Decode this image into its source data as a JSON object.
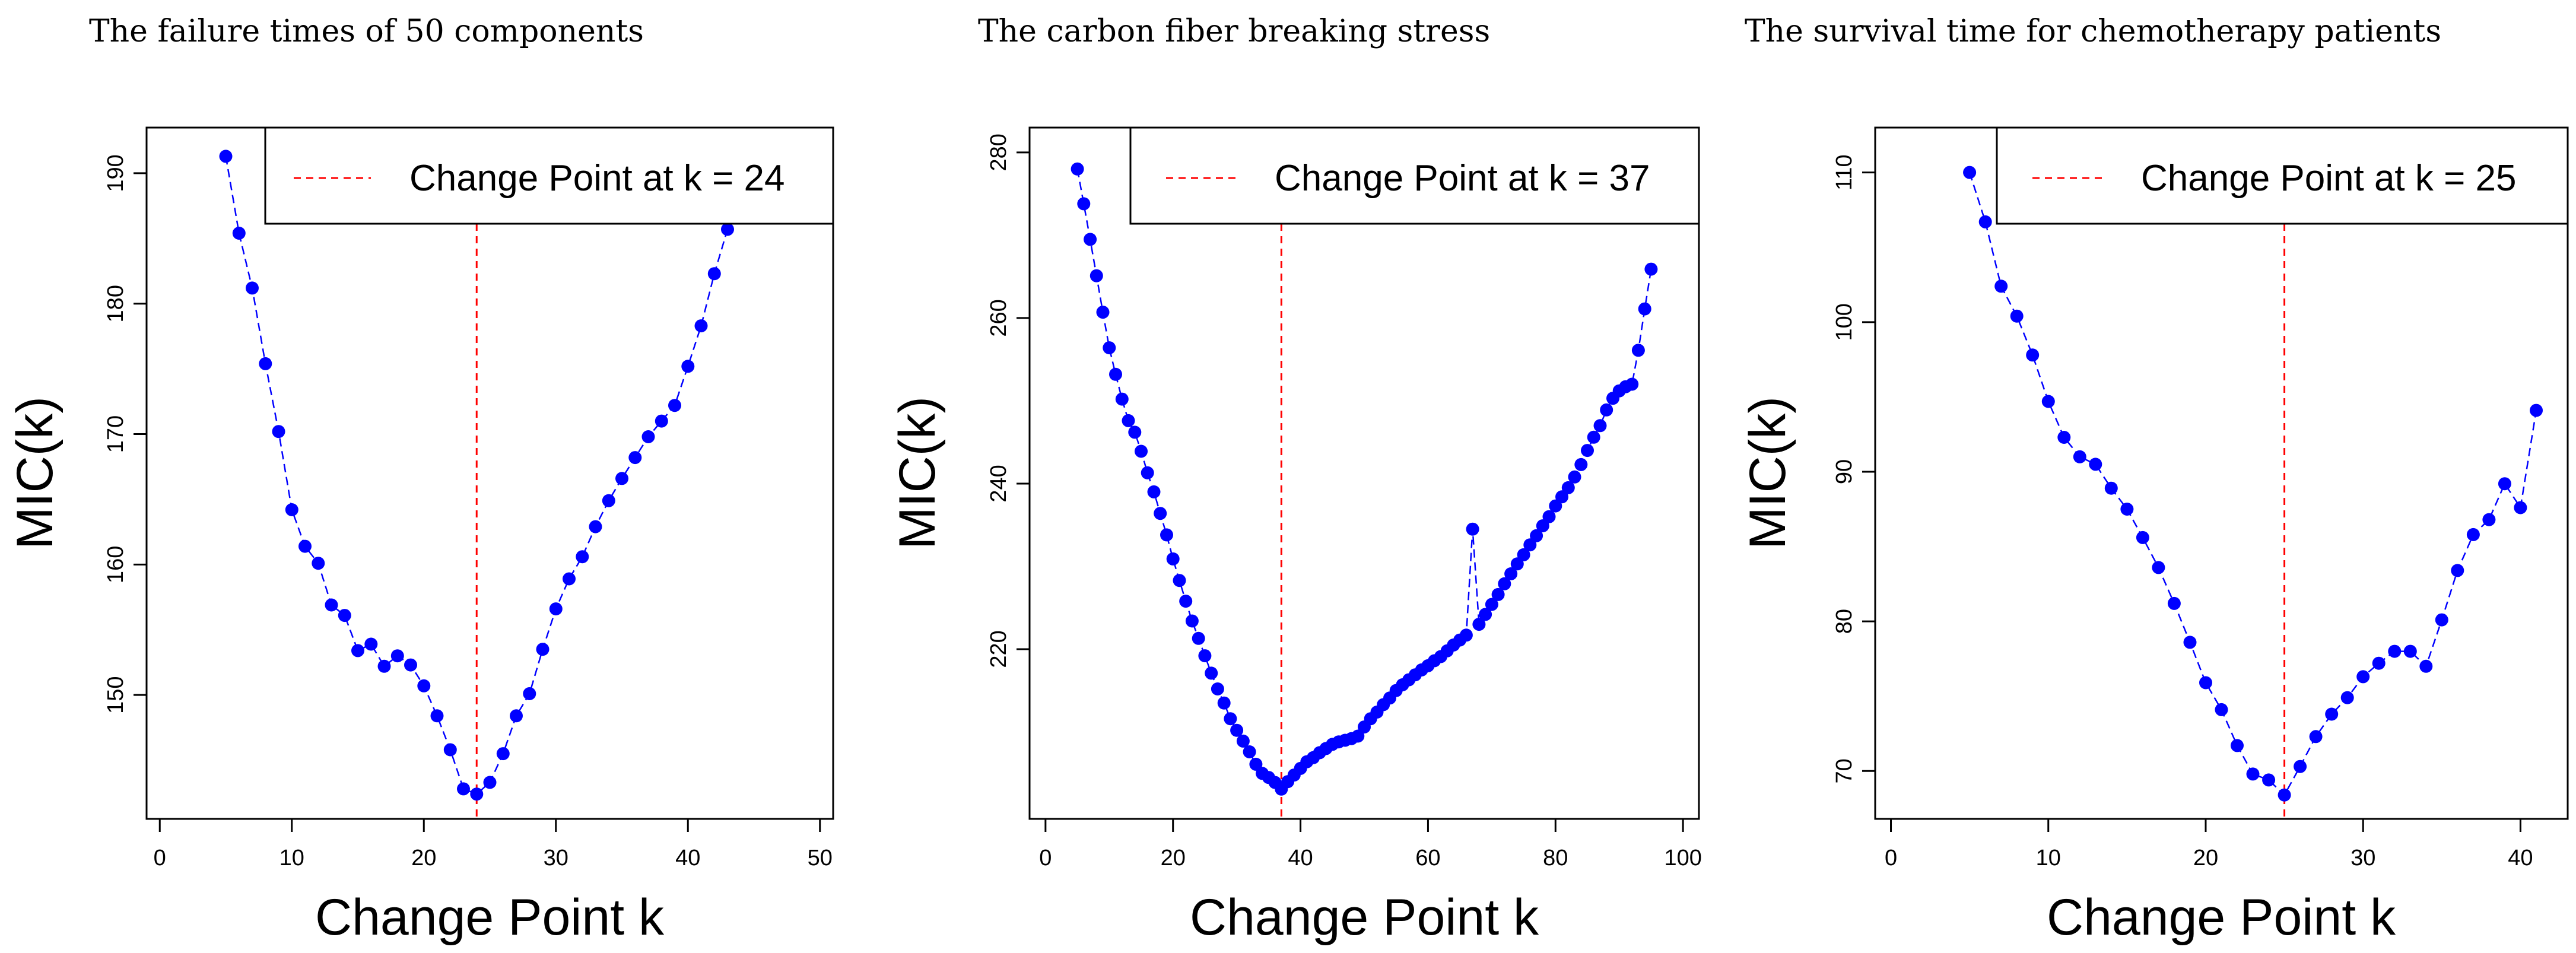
{
  "chart_data": [
    {
      "type": "line",
      "title": "The failure times of 50 components",
      "xlabel": "Change Point k",
      "ylabel": "MIC(k)",
      "xlim": [
        -1,
        51
      ],
      "ylim": [
        140.5,
        193.5
      ],
      "xticks": [
        0,
        10,
        20,
        30,
        40,
        50
      ],
      "yticks": [
        150,
        160,
        170,
        180,
        190
      ],
      "legend": "Change Point at k = 24",
      "legend_position": "top-right",
      "change_point": 24,
      "line_color": "#0000ff",
      "change_point_color": "#ff0000",
      "x": [
        5,
        6,
        7,
        8,
        9,
        10,
        11,
        12,
        13,
        14,
        15,
        16,
        17,
        18,
        19,
        20,
        21,
        22,
        23,
        24,
        25,
        26,
        27,
        28,
        29,
        30,
        31,
        32,
        33,
        34,
        35,
        36,
        37,
        38,
        39,
        40,
        41,
        42,
        43
      ],
      "values": [
        191.3,
        185.4,
        181.2,
        175.4,
        170.2,
        164.2,
        161.4,
        160.1,
        156.9,
        156.1,
        153.4,
        153.9,
        152.2,
        153.0,
        152.3,
        150.7,
        148.4,
        145.8,
        142.8,
        142.4,
        143.3,
        145.5,
        148.4,
        150.1,
        153.5,
        156.6,
        158.9,
        160.6,
        162.9,
        164.9,
        166.6,
        168.2,
        169.8,
        171.0,
        172.2,
        175.2,
        178.3,
        182.3,
        185.7
      ]
    },
    {
      "type": "line",
      "title": "The carbon fiber breaking stress",
      "xlabel": "Change Point k",
      "ylabel": "MIC(k)",
      "xlim": [
        -2.5,
        102.5
      ],
      "ylim": [
        199.5,
        283
      ],
      "xticks": [
        0,
        20,
        40,
        60,
        80,
        100
      ],
      "yticks": [
        220,
        240,
        260,
        280
      ],
      "legend": "Change Point at k = 37",
      "legend_position": "top-right",
      "change_point": 37,
      "line_color": "#0000ff",
      "change_point_color": "#ff0000",
      "x": [
        5,
        6,
        7,
        8,
        9,
        10,
        11,
        12,
        13,
        14,
        15,
        16,
        17,
        18,
        19,
        20,
        21,
        22,
        23,
        24,
        25,
        26,
        27,
        28,
        29,
        30,
        31,
        32,
        33,
        34,
        35,
        36,
        37,
        38,
        39,
        40,
        41,
        42,
        43,
        44,
        45,
        46,
        47,
        48,
        49,
        50,
        51,
        52,
        53,
        54,
        55,
        56,
        57,
        58,
        59,
        60,
        61,
        62,
        63,
        64,
        65,
        66,
        67,
        68,
        69,
        70,
        71,
        72,
        73,
        74,
        75,
        76,
        77,
        78,
        79,
        80,
        81,
        82,
        83,
        84,
        85,
        86,
        87,
        88,
        89,
        90,
        91,
        92,
        93,
        94,
        95
      ],
      "values": [
        278.0,
        273.8,
        269.5,
        265.1,
        260.7,
        256.4,
        253.2,
        250.2,
        247.6,
        246.2,
        243.9,
        241.3,
        239.0,
        236.4,
        233.8,
        230.9,
        228.3,
        225.8,
        223.4,
        221.3,
        219.2,
        217.1,
        215.2,
        213.5,
        211.6,
        210.2,
        208.9,
        207.6,
        206.1,
        205.0,
        204.5,
        203.9,
        203.1,
        204.0,
        204.8,
        205.6,
        206.4,
        206.9,
        207.5,
        208.0,
        208.5,
        208.8,
        209.0,
        209.2,
        209.5,
        210.6,
        211.6,
        212.4,
        213.3,
        214.1,
        215.0,
        215.7,
        216.3,
        216.9,
        217.5,
        218.0,
        218.6,
        219.1,
        219.8,
        220.5,
        221.1,
        221.7,
        234.5,
        223.0,
        224.2,
        225.4,
        226.6,
        227.9,
        229.1,
        230.3,
        231.4,
        232.6,
        233.7,
        234.9,
        236.0,
        237.3,
        238.4,
        239.5,
        240.8,
        242.3,
        244.0,
        245.6,
        247.0,
        248.9,
        250.3,
        251.2,
        251.7,
        252.0,
        256.1,
        261.1,
        265.9
      ]
    },
    {
      "type": "line",
      "title": "The survival time for chemotherapy patients",
      "xlabel": "Change Point k",
      "ylabel": "MIC(k)",
      "xlim": [
        -1,
        43
      ],
      "ylim": [
        66.8,
        113
      ],
      "xticks": [
        0,
        10,
        20,
        30,
        40
      ],
      "yticks": [
        70,
        80,
        90,
        100,
        110
      ],
      "legend": "Change Point at k = 25",
      "legend_position": "top-right",
      "change_point": 25,
      "line_color": "#0000ff",
      "change_point_color": "#ff0000",
      "x": [
        5,
        6,
        7,
        8,
        9,
        10,
        11,
        12,
        13,
        14,
        15,
        16,
        17,
        18,
        19,
        20,
        21,
        22,
        23,
        24,
        25,
        26,
        27,
        28,
        29,
        30,
        31,
        32,
        33,
        34,
        35,
        36,
        37,
        38,
        39,
        40,
        41
      ],
      "values": [
        110.0,
        106.7,
        102.4,
        100.4,
        97.8,
        94.7,
        92.3,
        91.0,
        90.5,
        88.9,
        87.5,
        85.6,
        83.6,
        81.2,
        78.6,
        75.9,
        74.1,
        71.7,
        69.8,
        69.4,
        68.4,
        70.3,
        72.3,
        73.8,
        74.9,
        76.3,
        77.2,
        78.0,
        78.0,
        77.0,
        80.1,
        83.4,
        85.8,
        86.8,
        89.2,
        87.6,
        94.1
      ]
    }
  ]
}
